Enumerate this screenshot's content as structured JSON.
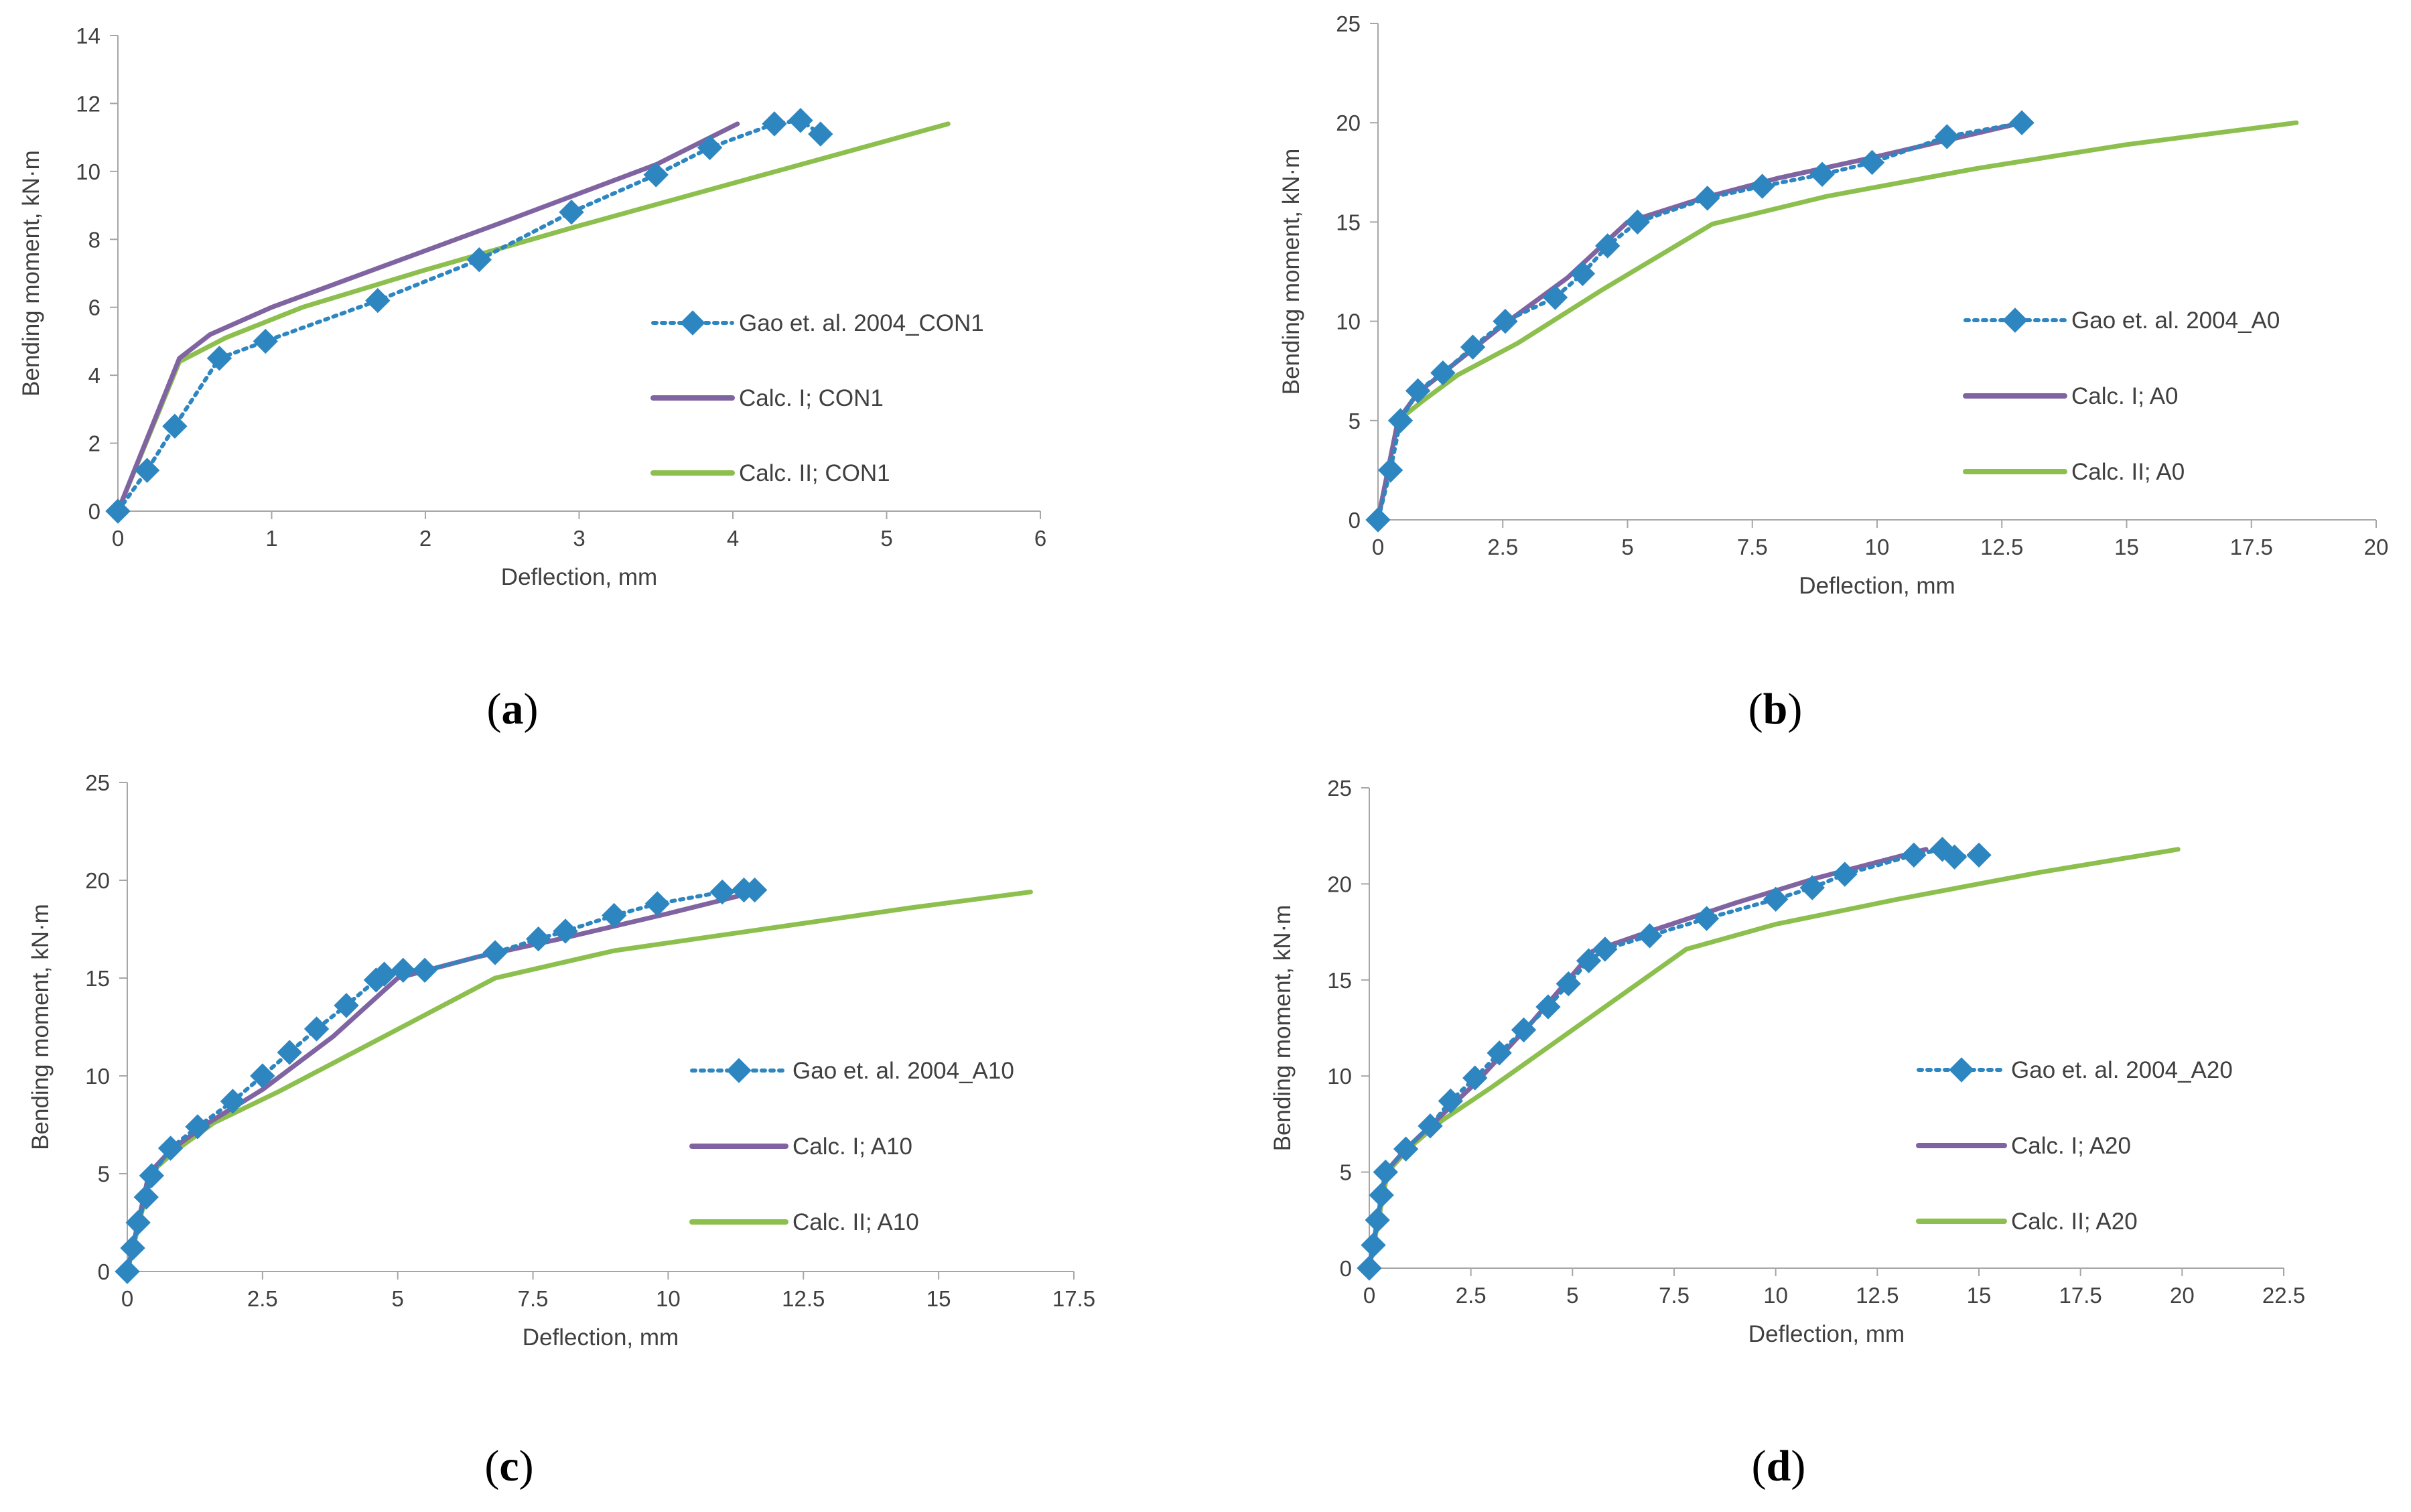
{
  "colors": {
    "experimental": "#2e86c1",
    "calc1": "#8064a2",
    "calc2": "#8cbf4e",
    "axis": "#a6a6a6"
  },
  "legend_names": {
    "experimental": "diamond-marker",
    "calc1": "purple-line",
    "calc2": "green-line"
  },
  "chart_data": [
    {
      "type": "line",
      "panel_label": "a",
      "xlabel": "Deflection, mm",
      "ylabel": "Bending moment, kN·m",
      "xlim": [
        0,
        6
      ],
      "ylim": [
        0,
        14
      ],
      "xticks": [
        0,
        1,
        2,
        3,
        4,
        5,
        6
      ],
      "yticks": [
        0,
        2,
        4,
        6,
        8,
        10,
        12,
        14
      ],
      "xtick_labels": [
        "0",
        "1",
        "2",
        "3",
        "4",
        "5",
        "6"
      ],
      "ytick_labels": [
        "0",
        "2",
        "4",
        "6",
        "8",
        "10",
        "12",
        "14"
      ],
      "series": [
        {
          "name": "Gao et. al. 2004_CON1",
          "style": "experimental",
          "x": [
            0,
            0.19,
            0.37,
            0.66,
            0.96,
            1.69,
            2.35,
            2.95,
            3.5,
            3.85,
            4.27,
            4.44,
            4.57
          ],
          "y": [
            0,
            1.2,
            2.5,
            4.5,
            5.0,
            6.2,
            7.4,
            8.8,
            9.9,
            10.7,
            11.4,
            11.5,
            11.1
          ]
        },
        {
          "name": "Calc. I; CON1",
          "style": "calc1",
          "x": [
            0,
            0.4,
            0.6,
            1.0,
            1.6,
            2.5,
            3.5,
            4.03
          ],
          "y": [
            0,
            4.5,
            5.2,
            6.0,
            7.0,
            8.5,
            10.2,
            11.4
          ]
        },
        {
          "name": "Calc. II; CON1",
          "style": "calc2",
          "x": [
            0,
            0.4,
            0.7,
            1.2,
            2.0,
            3.0,
            4.2,
            5.4
          ],
          "y": [
            0,
            4.4,
            5.1,
            6.0,
            7.1,
            8.4,
            9.9,
            11.4
          ]
        }
      ]
    },
    {
      "type": "line",
      "panel_label": "b",
      "xlabel": "Deflection, mm",
      "ylabel": "Bending moment, kN·m",
      "xlim": [
        0,
        20
      ],
      "ylim": [
        0,
        25
      ],
      "xticks": [
        0,
        2.5,
        5,
        7.5,
        10,
        12.5,
        15,
        17.5,
        20
      ],
      "yticks": [
        0,
        5,
        10,
        15,
        20,
        25
      ],
      "xtick_labels": [
        "0",
        "2.5",
        "5",
        "7.5",
        "10",
        "12.5",
        "15",
        "17.5",
        "20"
      ],
      "ytick_labels": [
        "0",
        "5",
        "10",
        "15",
        "20",
        "25"
      ],
      "series": [
        {
          "name": "Gao et. al. 2004_A0",
          "style": "experimental",
          "x": [
            0,
            0.25,
            0.45,
            0.8,
            1.3,
            1.9,
            2.55,
            3.55,
            4.1,
            4.6,
            5.2,
            6.6,
            7.7,
            8.9,
            9.9,
            11.4,
            12.9
          ],
          "y": [
            0,
            2.5,
            5.0,
            6.5,
            7.4,
            8.7,
            10.0,
            11.2,
            12.4,
            13.8,
            15.0,
            16.2,
            16.8,
            17.4,
            18.0,
            19.3,
            20.0
          ]
        },
        {
          "name": "Calc. I; A0",
          "style": "calc1",
          "x": [
            0,
            0.4,
            0.8,
            1.5,
            2.5,
            3.8,
            5.0,
            6.5,
            8.0,
            10.0,
            12.9
          ],
          "y": [
            0,
            5.0,
            6.4,
            7.8,
            9.8,
            12.2,
            15.0,
            16.2,
            17.2,
            18.3,
            20.0
          ]
        },
        {
          "name": "Calc. II; A0",
          "style": "calc2",
          "x": [
            0,
            0.4,
            0.9,
            1.6,
            2.8,
            4.5,
            6.7,
            9.0,
            12.0,
            15.0,
            18.4
          ],
          "y": [
            0,
            5.0,
            6.0,
            7.3,
            8.9,
            11.6,
            14.9,
            16.3,
            17.7,
            18.9,
            20.0
          ]
        }
      ]
    },
    {
      "type": "line",
      "panel_label": "c",
      "xlabel": "Deflection, mm",
      "ylabel": "Bending moment, kN·m",
      "xlim": [
        0,
        17.5
      ],
      "ylim": [
        0,
        25
      ],
      "xticks": [
        0,
        2.5,
        5,
        7.5,
        10,
        12.5,
        15,
        17.5
      ],
      "yticks": [
        0,
        5,
        10,
        15,
        20,
        25
      ],
      "xtick_labels": [
        "0",
        "2.5",
        "5",
        "7.5",
        "10",
        "12.5",
        "15",
        "17.5"
      ],
      "ytick_labels": [
        "0",
        "5",
        "10",
        "15",
        "20",
        "25"
      ],
      "series": [
        {
          "name": "Gao et. al. 2004_A10",
          "style": "experimental",
          "x": [
            0,
            0.1,
            0.2,
            0.35,
            0.45,
            0.8,
            1.3,
            1.95,
            2.5,
            3.0,
            3.5,
            4.05,
            4.6,
            4.75,
            5.1,
            5.5,
            6.8,
            7.6,
            8.1,
            9.0,
            9.8,
            11.0,
            11.4,
            11.6
          ],
          "y": [
            0,
            1.2,
            2.5,
            3.8,
            4.9,
            6.3,
            7.4,
            8.7,
            10.0,
            11.2,
            12.4,
            13.6,
            14.9,
            15.2,
            15.4,
            15.4,
            16.3,
            17.0,
            17.4,
            18.2,
            18.8,
            19.4,
            19.5,
            19.5
          ]
        },
        {
          "name": "Calc. I; A10",
          "style": "calc1",
          "x": [
            0,
            0.4,
            0.8,
            1.5,
            2.5,
            3.8,
            5.0,
            6.5,
            8.0,
            10.0,
            11.6
          ],
          "y": [
            0,
            5.0,
            6.2,
            7.6,
            9.3,
            12.0,
            15.0,
            16.1,
            17.0,
            18.3,
            19.4
          ]
        },
        {
          "name": "Calc. II; A10",
          "style": "calc2",
          "x": [
            0,
            0.45,
            0.9,
            1.6,
            2.8,
            4.6,
            6.8,
            9.0,
            12.0,
            14.5,
            16.7
          ],
          "y": [
            0,
            5.1,
            6.2,
            7.6,
            9.2,
            11.8,
            15.0,
            16.4,
            17.6,
            18.6,
            19.4
          ]
        }
      ]
    },
    {
      "type": "line",
      "panel_label": "d",
      "xlabel": "Deflection, mm",
      "ylabel": "Bending moment, kN·m",
      "xlim": [
        0,
        22.5
      ],
      "ylim": [
        0,
        25
      ],
      "xticks": [
        0,
        2.5,
        5,
        7.5,
        10,
        12.5,
        15,
        17.5,
        20,
        22.5
      ],
      "yticks": [
        0,
        5,
        10,
        15,
        20,
        25
      ],
      "xtick_labels": [
        "0",
        "2.5",
        "5",
        "7.5",
        "10",
        "12.5",
        "15",
        "17.5",
        "20",
        "22.5"
      ],
      "ytick_labels": [
        "0",
        "5",
        "10",
        "15",
        "20",
        "25"
      ],
      "series": [
        {
          "name": "Gao et. al. 2004_A20",
          "style": "experimental",
          "x": [
            0,
            0.1,
            0.2,
            0.3,
            0.4,
            0.9,
            1.5,
            2.0,
            2.6,
            3.2,
            3.8,
            4.4,
            4.9,
            5.4,
            5.8,
            6.9,
            8.3,
            10.0,
            10.9,
            11.7,
            13.4,
            14.1,
            14.4,
            15.0
          ],
          "y": [
            0,
            1.2,
            2.5,
            3.8,
            5.0,
            6.2,
            7.4,
            8.7,
            9.9,
            11.2,
            12.4,
            13.6,
            14.8,
            16.0,
            16.6,
            17.3,
            18.2,
            19.2,
            19.8,
            20.5,
            21.5,
            21.8,
            21.4,
            21.5
          ]
        },
        {
          "name": "Calc. I; A20",
          "style": "calc1",
          "x": [
            0,
            0.4,
            0.9,
            1.6,
            2.6,
            4.0,
            5.5,
            7.0,
            9.0,
            11.0,
            13.7
          ],
          "y": [
            0,
            5.0,
            6.2,
            7.6,
            9.6,
            12.8,
            16.5,
            17.6,
            19.0,
            20.3,
            21.8
          ]
        },
        {
          "name": "Calc. II; A20",
          "style": "calc2",
          "x": [
            0,
            0.45,
            1.0,
            1.8,
            3.0,
            5.0,
            7.8,
            10.0,
            13.0,
            16.5,
            19.9
          ],
          "y": [
            0,
            5.0,
            6.3,
            7.7,
            9.4,
            12.4,
            16.6,
            17.9,
            19.2,
            20.6,
            21.8
          ]
        }
      ]
    }
  ]
}
